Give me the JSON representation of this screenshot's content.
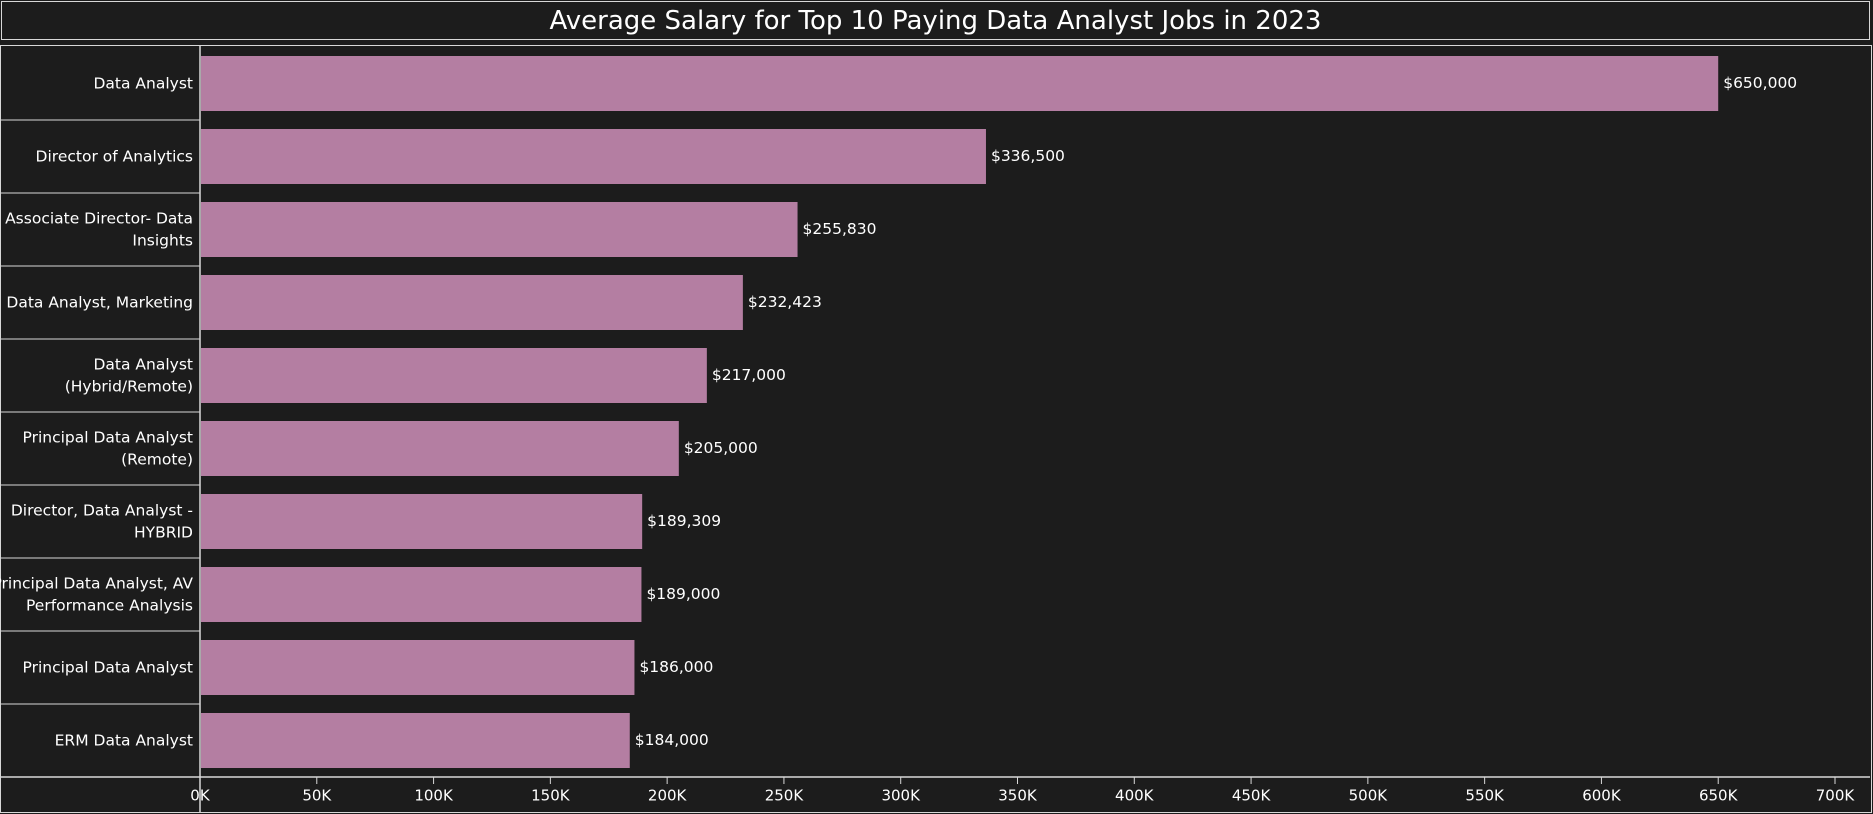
{
  "chart_data": {
    "type": "bar",
    "orientation": "horizontal",
    "title": "Average Salary for Top 10 Paying Data Analyst Jobs in 2023",
    "xlabel": "",
    "ylabel": "",
    "xlim": [
      0,
      700000
    ],
    "x_ticks": [
      0,
      50000,
      100000,
      150000,
      200000,
      250000,
      300000,
      350000,
      400000,
      450000,
      500000,
      550000,
      600000,
      650000,
      700000
    ],
    "x_tick_labels": [
      "0K",
      "50K",
      "100K",
      "150K",
      "200K",
      "250K",
      "300K",
      "350K",
      "400K",
      "450K",
      "500K",
      "550K",
      "600K",
      "650K",
      "700K"
    ],
    "categories": [
      [
        "Data Analyst"
      ],
      [
        "Director of Analytics"
      ],
      [
        "Associate Director- Data",
        "Insights"
      ],
      [
        "Data Analyst, Marketing"
      ],
      [
        "Data Analyst",
        "(Hybrid/Remote)"
      ],
      [
        "Principal Data Analyst",
        "(Remote)"
      ],
      [
        "Director, Data Analyst -",
        "HYBRID"
      ],
      [
        "Principal Data Analyst, AV",
        "Performance Analysis"
      ],
      [
        "Principal Data Analyst"
      ],
      [
        "ERM Data Analyst"
      ]
    ],
    "values": [
      650000,
      336500,
      255830,
      232423,
      217000,
      205000,
      189309,
      189000,
      186000,
      184000
    ],
    "data_labels": [
      "$650,000",
      "$336,500",
      "$255,830",
      "$232,423",
      "$217,000",
      "$205,000",
      "$189,309",
      "$189,000",
      "$186,000",
      "$184,000"
    ],
    "bar_color": "#b47ea2",
    "background_color": "#1c1c1c",
    "grid": false,
    "legend": "none"
  }
}
